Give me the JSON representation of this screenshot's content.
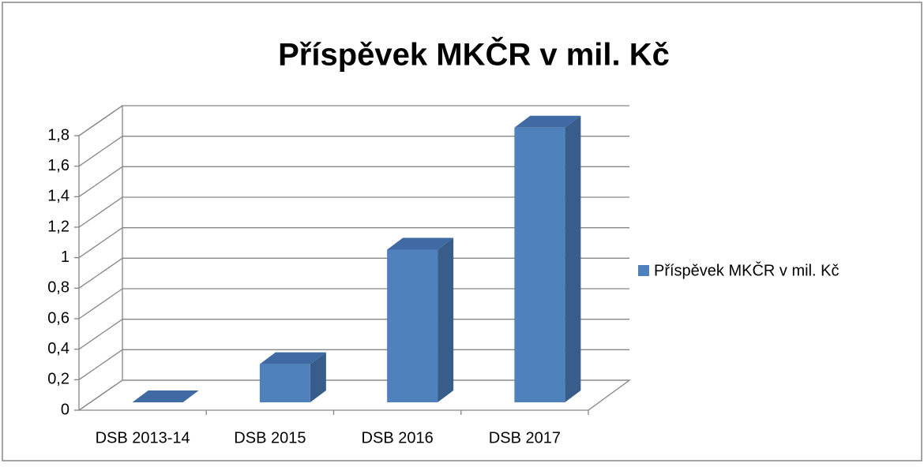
{
  "chart_data": {
    "type": "bar3d",
    "title": "Příspěvek MKČR v mil. Kč",
    "categories": [
      "DSB 2013-14",
      "DSB 2015",
      "DSB 2016",
      "DSB 2017"
    ],
    "series": [
      {
        "name": "Příspěvek MKČR v mil. Kč",
        "color": "#4f81bd",
        "values": [
          0,
          0.25,
          1,
          1.8
        ]
      }
    ],
    "ylim": [
      0,
      1.8
    ],
    "yticks": [
      0,
      {
        "value": 0.2,
        "label": "0,2"
      },
      {
        "value": 0.4,
        "label": "0,4"
      },
      {
        "value": 0.6,
        "label": "0,6"
      },
      {
        "value": 0.8,
        "label": "0,8"
      },
      1,
      {
        "value": 1.2,
        "label": "1,2"
      },
      {
        "value": 1.4,
        "label": "1,4"
      },
      {
        "value": 1.6,
        "label": "1,6"
      },
      {
        "value": 1.8,
        "label": "1,8"
      }
    ],
    "grid": true,
    "legend": "right"
  }
}
